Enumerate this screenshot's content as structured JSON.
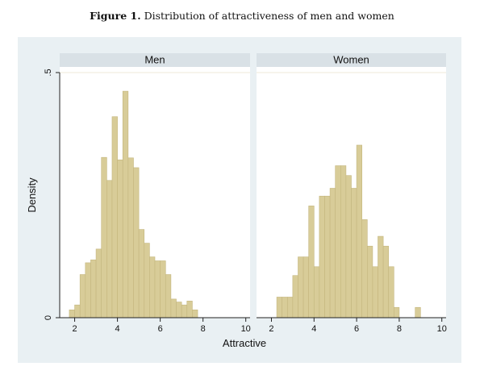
{
  "caption": {
    "label": "Figure 1.",
    "text": "Distribution of attractiveness of men and women"
  },
  "colors": {
    "outer_bg": "#e9f0f3",
    "strip_bg": "#d9e1e6",
    "bar_fill": "#d8cc98",
    "bar_stroke": "#c4b67e",
    "axis": "#222222",
    "grid": "#efe9d9"
  },
  "chart_data": {
    "type": "bar",
    "xlabel": "Attractive",
    "ylabel": "Density",
    "xlim": [
      1.3,
      10.2
    ],
    "ylim": [
      0,
      0.5
    ],
    "x_ticks": [
      {
        "value": 2,
        "label": "2"
      },
      {
        "value": 4,
        "label": "4"
      },
      {
        "value": 6,
        "label": "6"
      },
      {
        "value": 8,
        "label": "8"
      },
      {
        "value": 10,
        "label": "10"
      }
    ],
    "y_ticks": [
      {
        "value": 0,
        "label": "0"
      },
      {
        "value": 0.5,
        "label": ".5"
      }
    ],
    "bin_width": 0.25,
    "panels": [
      {
        "name": "Men",
        "bins": [
          {
            "x": 1.75,
            "density": 0.016
          },
          {
            "x": 2.0,
            "density": 0.026
          },
          {
            "x": 2.25,
            "density": 0.088
          },
          {
            "x": 2.5,
            "density": 0.112
          },
          {
            "x": 2.75,
            "density": 0.118
          },
          {
            "x": 3.0,
            "density": 0.14
          },
          {
            "x": 3.25,
            "density": 0.327
          },
          {
            "x": 3.5,
            "density": 0.28
          },
          {
            "x": 3.75,
            "density": 0.41
          },
          {
            "x": 4.0,
            "density": 0.322
          },
          {
            "x": 4.25,
            "density": 0.462
          },
          {
            "x": 4.5,
            "density": 0.326
          },
          {
            "x": 4.75,
            "density": 0.306
          },
          {
            "x": 5.0,
            "density": 0.18
          },
          {
            "x": 5.25,
            "density": 0.152
          },
          {
            "x": 5.5,
            "density": 0.124
          },
          {
            "x": 5.75,
            "density": 0.116
          },
          {
            "x": 6.0,
            "density": 0.116
          },
          {
            "x": 6.25,
            "density": 0.088
          },
          {
            "x": 6.5,
            "density": 0.038
          },
          {
            "x": 6.75,
            "density": 0.032
          },
          {
            "x": 7.0,
            "density": 0.026
          },
          {
            "x": 7.25,
            "density": 0.034
          },
          {
            "x": 7.5,
            "density": 0.016
          }
        ]
      },
      {
        "name": "Women",
        "bins": [
          {
            "x": 2.25,
            "density": 0.042
          },
          {
            "x": 2.5,
            "density": 0.042
          },
          {
            "x": 2.75,
            "density": 0.042
          },
          {
            "x": 3.0,
            "density": 0.086
          },
          {
            "x": 3.25,
            "density": 0.124
          },
          {
            "x": 3.5,
            "density": 0.124
          },
          {
            "x": 3.75,
            "density": 0.228
          },
          {
            "x": 4.0,
            "density": 0.104
          },
          {
            "x": 4.25,
            "density": 0.248
          },
          {
            "x": 4.5,
            "density": 0.248
          },
          {
            "x": 4.75,
            "density": 0.264
          },
          {
            "x": 5.0,
            "density": 0.31
          },
          {
            "x": 5.25,
            "density": 0.31
          },
          {
            "x": 5.5,
            "density": 0.29
          },
          {
            "x": 5.75,
            "density": 0.264
          },
          {
            "x": 6.0,
            "density": 0.352
          },
          {
            "x": 6.25,
            "density": 0.2
          },
          {
            "x": 6.5,
            "density": 0.146
          },
          {
            "x": 6.75,
            "density": 0.104
          },
          {
            "x": 7.0,
            "density": 0.166
          },
          {
            "x": 7.25,
            "density": 0.146
          },
          {
            "x": 7.5,
            "density": 0.104
          },
          {
            "x": 7.75,
            "density": 0.021
          },
          {
            "x": 8.75,
            "density": 0.021
          }
        ]
      }
    ]
  }
}
